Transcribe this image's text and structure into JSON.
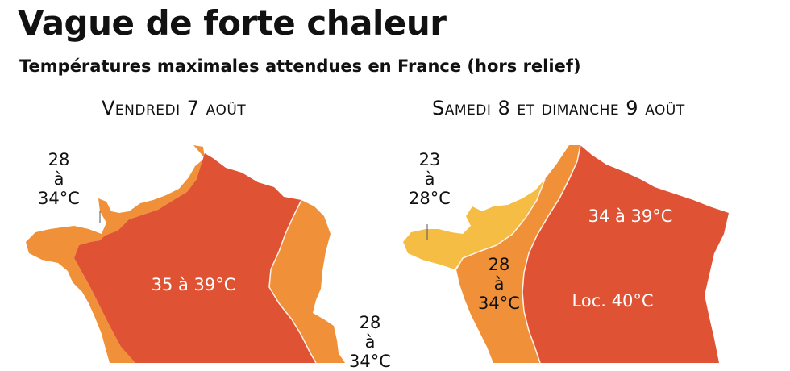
{
  "title": "Vague de forte chaleur",
  "subtitle": "Températures maximales attendues en France (hors relief)",
  "panels": [
    {
      "title": "Vendredi 7 août",
      "zones": [
        {
          "lines": [
            "28",
            "à",
            "34°C"
          ],
          "color": "#f0913a"
        },
        {
          "text": "35 à 39°C",
          "color": "#e05234"
        },
        {
          "lines": [
            "28",
            "à",
            "34°C"
          ],
          "color": "#f0913a"
        }
      ]
    },
    {
      "title": "Samedi 8 et dimanche 9 août",
      "zones": [
        {
          "lines": [
            "23",
            "à",
            "28°C"
          ],
          "color": "#f6bd45"
        },
        {
          "lines": [
            "28",
            "à",
            "34°C"
          ],
          "color": "#f0913a"
        },
        {
          "text": "34 à 39°C",
          "color": "#e05234"
        },
        {
          "text": "Loc. 40°C",
          "color": "#e05234"
        }
      ]
    }
  ]
}
